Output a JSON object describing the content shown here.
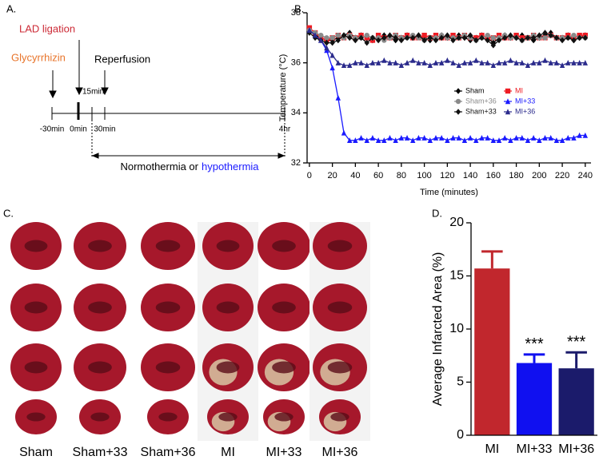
{
  "chart_data": [
    {
      "type": "line",
      "panel_label": "B.",
      "x_label": "Time (minutes)",
      "y_label": "Temperature (°C)",
      "x": [
        0,
        5,
        10,
        15,
        20,
        25,
        30,
        35,
        40,
        45,
        50,
        55,
        60,
        65,
        70,
        75,
        80,
        85,
        90,
        95,
        100,
        105,
        110,
        115,
        120,
        125,
        130,
        135,
        140,
        145,
        150,
        155,
        160,
        165,
        170,
        175,
        180,
        185,
        190,
        195,
        200,
        205,
        210,
        215,
        220,
        225,
        230,
        235,
        240
      ],
      "xlim": [
        -2,
        245
      ],
      "xticks": [
        0,
        20,
        40,
        60,
        80,
        100,
        120,
        140,
        160,
        180,
        200,
        220,
        240
      ],
      "ylim": [
        32,
        38
      ],
      "yticks": [
        32,
        34,
        36,
        38
      ],
      "grid": false,
      "legend": "center right",
      "series": [
        {
          "name": "Sham",
          "color": "#000000",
          "marker": "diamond",
          "values": [
            37.3,
            37.1,
            37.0,
            36.9,
            36.9,
            37.0,
            37.1,
            37.2,
            37.0,
            37.1,
            37.0,
            36.9,
            37.0,
            37.1,
            37.0,
            36.9,
            37.0,
            37.1,
            37.0,
            37.1,
            37.0,
            36.9,
            37.0,
            37.1,
            37.0,
            37.0,
            37.1,
            37.0,
            36.9,
            37.0,
            37.1,
            37.0,
            36.8,
            37.0,
            37.1,
            37.0,
            37.0,
            37.1,
            37.0,
            36.9,
            37.0,
            37.1,
            37.2,
            37.0,
            37.0,
            37.1,
            36.9,
            37.0,
            37.1
          ]
        },
        {
          "name": "MI",
          "color": "#ee1c24",
          "marker": "square",
          "values": [
            37.4,
            37.2,
            37.0,
            36.9,
            37.0,
            37.1,
            37.0,
            37.1,
            37.0,
            37.1,
            37.0,
            36.9,
            37.1,
            37.0,
            37.0,
            37.1,
            37.0,
            37.1,
            37.0,
            37.0,
            37.1,
            37.0,
            37.1,
            37.0,
            37.0,
            37.1,
            37.0,
            37.1,
            37.0,
            37.0,
            37.1,
            37.0,
            37.0,
            37.1,
            37.0,
            37.0,
            37.1,
            37.0,
            37.0,
            37.1,
            37.0,
            37.0,
            37.1,
            37.0,
            37.0,
            37.1,
            37.0,
            37.1,
            37.1
          ]
        },
        {
          "name": "Sham+36",
          "color": "#8a8a8a",
          "marker": "circle",
          "values": [
            37.3,
            37.2,
            37.1,
            37.0,
            37.0,
            37.1,
            37.0,
            37.1,
            37.0,
            37.0,
            37.1,
            37.0,
            37.0,
            36.9,
            37.0,
            37.1,
            37.0,
            37.0,
            37.1,
            37.0,
            36.9,
            37.0,
            37.0,
            37.1,
            37.0,
            37.0,
            37.0,
            37.1,
            37.0,
            36.9,
            37.0,
            37.1,
            37.0,
            37.0,
            37.1,
            37.0,
            37.0,
            36.9,
            37.0,
            37.1,
            37.0,
            37.0,
            37.1,
            37.0,
            37.0,
            37.0,
            37.1,
            37.0,
            37.0
          ]
        },
        {
          "name": "MI+33",
          "color": "#1a1aff",
          "marker": "triangle",
          "values": [
            37.3,
            37.1,
            36.9,
            36.5,
            35.8,
            34.6,
            33.2,
            32.9,
            32.9,
            33.0,
            32.9,
            33.0,
            32.9,
            32.9,
            33.0,
            32.9,
            33.0,
            33.0,
            32.9,
            33.0,
            33.0,
            32.9,
            33.0,
            33.0,
            32.9,
            33.0,
            33.0,
            32.9,
            33.0,
            32.9,
            33.0,
            33.0,
            32.9,
            32.9,
            33.0,
            32.9,
            33.0,
            33.0,
            32.9,
            33.0,
            32.9,
            33.0,
            33.0,
            32.9,
            32.9,
            33.0,
            33.0,
            33.1,
            33.1
          ]
        },
        {
          "name": "Sham+33",
          "color": "#111111",
          "marker": "diamond",
          "values": [
            37.2,
            37.0,
            36.9,
            36.8,
            36.8,
            36.9,
            37.1,
            37.0,
            36.9,
            37.0,
            36.8,
            37.0,
            36.9,
            37.0,
            37.1,
            37.0,
            36.9,
            37.0,
            37.0,
            37.1,
            36.9,
            37.0,
            36.9,
            37.0,
            37.1,
            36.9,
            37.0,
            37.0,
            37.1,
            36.9,
            37.0,
            36.9,
            36.7,
            36.9,
            37.0,
            37.1,
            37.0,
            36.9,
            37.0,
            37.0,
            37.1,
            37.2,
            37.1,
            37.0,
            36.9,
            37.0,
            36.9,
            37.0,
            37.0
          ]
        },
        {
          "name": "MI+36",
          "color": "#2b2b8c",
          "marker": "triangle",
          "values": [
            37.3,
            37.1,
            36.9,
            36.6,
            36.3,
            36.0,
            35.9,
            35.9,
            36.0,
            36.0,
            35.9,
            36.0,
            36.0,
            36.1,
            36.0,
            36.0,
            35.9,
            36.0,
            36.1,
            36.0,
            36.0,
            35.9,
            36.0,
            36.0,
            36.1,
            36.0,
            35.9,
            36.0,
            36.0,
            36.1,
            36.0,
            36.0,
            35.9,
            36.0,
            36.0,
            36.1,
            36.0,
            36.0,
            35.9,
            36.0,
            36.0,
            36.1,
            36.0,
            36.0,
            35.9,
            36.0,
            36.0,
            36.0,
            36.0
          ]
        }
      ]
    },
    {
      "type": "bar",
      "panel_label": "D.",
      "y_label": "Average Infarcted Area (%)",
      "categories": [
        "MI",
        "MI+33",
        "MI+36"
      ],
      "values": [
        15.7,
        6.8,
        6.3
      ],
      "errors": [
        1.6,
        0.8,
        1.5
      ],
      "colors": [
        "#c1272d",
        "#1010f0",
        "#1b1b6b"
      ],
      "significance": [
        null,
        "***",
        "***"
      ],
      "ylim": [
        0,
        20
      ],
      "yticks": [
        0,
        5,
        10,
        15,
        20
      ],
      "grid": false
    }
  ],
  "timeline": {
    "label": "A.",
    "events": [
      "Glycyrrhizin",
      "LAD ligation",
      "Reperfusion"
    ],
    "interval": "15min",
    "ticks": [
      "-30min",
      "0min",
      "30min",
      "4hr"
    ],
    "condition": [
      "Normothermia or",
      "hypothermia"
    ]
  },
  "photo_panel": {
    "label": "C.",
    "groups": [
      "Sham",
      "Sham+33",
      "Sham+36",
      "MI",
      "MI+33",
      "MI+36"
    ]
  }
}
